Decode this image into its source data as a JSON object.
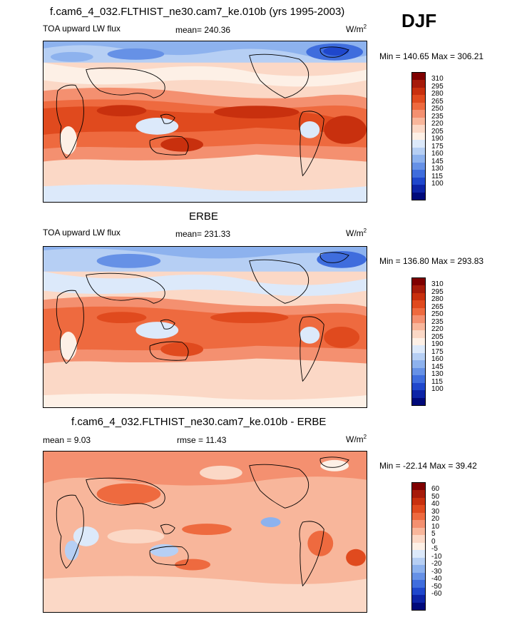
{
  "season": "DJF",
  "panels": [
    {
      "title": "f.cam6_4_032.FLTHIST_ne30.cam7_ke.010b (yrs 1995-2003)",
      "left_label": "TOA upward LW flux",
      "center_label": "mean= 240.36",
      "unit_base": "W/m",
      "unit_sup": "2",
      "minmax": "Min = 140.65 Max = 306.21",
      "colorbar": {
        "ticks": [
          "310",
          "295",
          "280",
          "265",
          "250",
          "235",
          "220",
          "205",
          "190",
          "175",
          "160",
          "145",
          "130",
          "115",
          "100"
        ],
        "colors": [
          "#7f0000",
          "#a61b0a",
          "#c8300e",
          "#e04a1e",
          "#ee6a3f",
          "#f49070",
          "#f8b69b",
          "#fbd8c6",
          "#fdf0e6",
          "#dce9fa",
          "#b6cff4",
          "#8db2ee",
          "#6691e6",
          "#3f6ddd",
          "#1f47cc",
          "#0d24a6",
          "#000a7a"
        ]
      }
    },
    {
      "title": "ERBE",
      "left_label": "TOA upward LW flux",
      "center_label": "mean= 231.33",
      "unit_base": "W/m",
      "unit_sup": "2",
      "minmax": "Min = 136.80 Max = 293.83",
      "colorbar": {
        "ticks": [
          "310",
          "295",
          "280",
          "265",
          "250",
          "235",
          "220",
          "205",
          "190",
          "175",
          "160",
          "145",
          "130",
          "115",
          "100"
        ],
        "colors": [
          "#7f0000",
          "#a61b0a",
          "#c8300e",
          "#e04a1e",
          "#ee6a3f",
          "#f49070",
          "#f8b69b",
          "#fbd8c6",
          "#fdf0e6",
          "#dce9fa",
          "#b6cff4",
          "#8db2ee",
          "#6691e6",
          "#3f6ddd",
          "#1f47cc",
          "#0d24a6",
          "#000a7a"
        ]
      }
    },
    {
      "title": "f.cam6_4_032.FLTHIST_ne30.cam7_ke.010b - ERBE",
      "left_label": "mean =   9.03",
      "center_label": "rmse =  11.43",
      "unit_base": "W/m",
      "unit_sup": "2",
      "minmax": "Min = -22.14 Max =  39.42",
      "colorbar": {
        "ticks": [
          "60",
          "50",
          "40",
          "30",
          "20",
          "10",
          "5",
          "0",
          "-5",
          "-10",
          "-20",
          "-30",
          "-40",
          "-50",
          "-60"
        ],
        "colors": [
          "#7f0000",
          "#a61b0a",
          "#c8300e",
          "#e04a1e",
          "#ee6a3f",
          "#f49070",
          "#f8b69b",
          "#fbd8c6",
          "#fdf0e6",
          "#dce9fa",
          "#b6cff4",
          "#8db2ee",
          "#6691e6",
          "#3f6ddd",
          "#1f47cc",
          "#0d24a6",
          "#000a7a"
        ]
      }
    }
  ]
}
